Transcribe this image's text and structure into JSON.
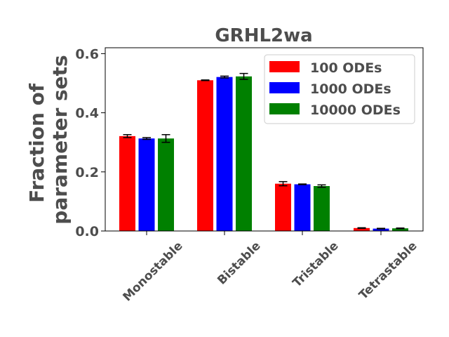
{
  "chart_data": {
    "type": "bar",
    "title": "GRHL2wa",
    "ylabel_lines": [
      "Fraction of",
      "parameter sets"
    ],
    "xlabel": "",
    "ylim": [
      0,
      0.62
    ],
    "yticks": [
      0.0,
      0.2,
      0.4,
      0.6
    ],
    "ytick_labels": [
      "0.0",
      "0.2",
      "0.4",
      "0.6"
    ],
    "categories": [
      "Monostable",
      "Bistable",
      "Tristable",
      "Tetrastable"
    ],
    "legend_position": "top-right",
    "grid": false,
    "series": [
      {
        "name": "100 ODEs",
        "color": "#ff0000",
        "values": [
          0.321,
          0.51,
          0.16,
          0.01
        ],
        "errors": [
          0.005,
          0.001,
          0.007,
          0.001
        ]
      },
      {
        "name": "1000 ODEs",
        "color": "#0000ff",
        "values": [
          0.313,
          0.521,
          0.158,
          0.008
        ],
        "errors": [
          0.003,
          0.003,
          0.001,
          0.001
        ]
      },
      {
        "name": "10000 ODEs",
        "color": "#008000",
        "values": [
          0.313,
          0.523,
          0.152,
          0.009
        ],
        "errors": [
          0.013,
          0.01,
          0.004,
          0.001
        ]
      }
    ]
  }
}
